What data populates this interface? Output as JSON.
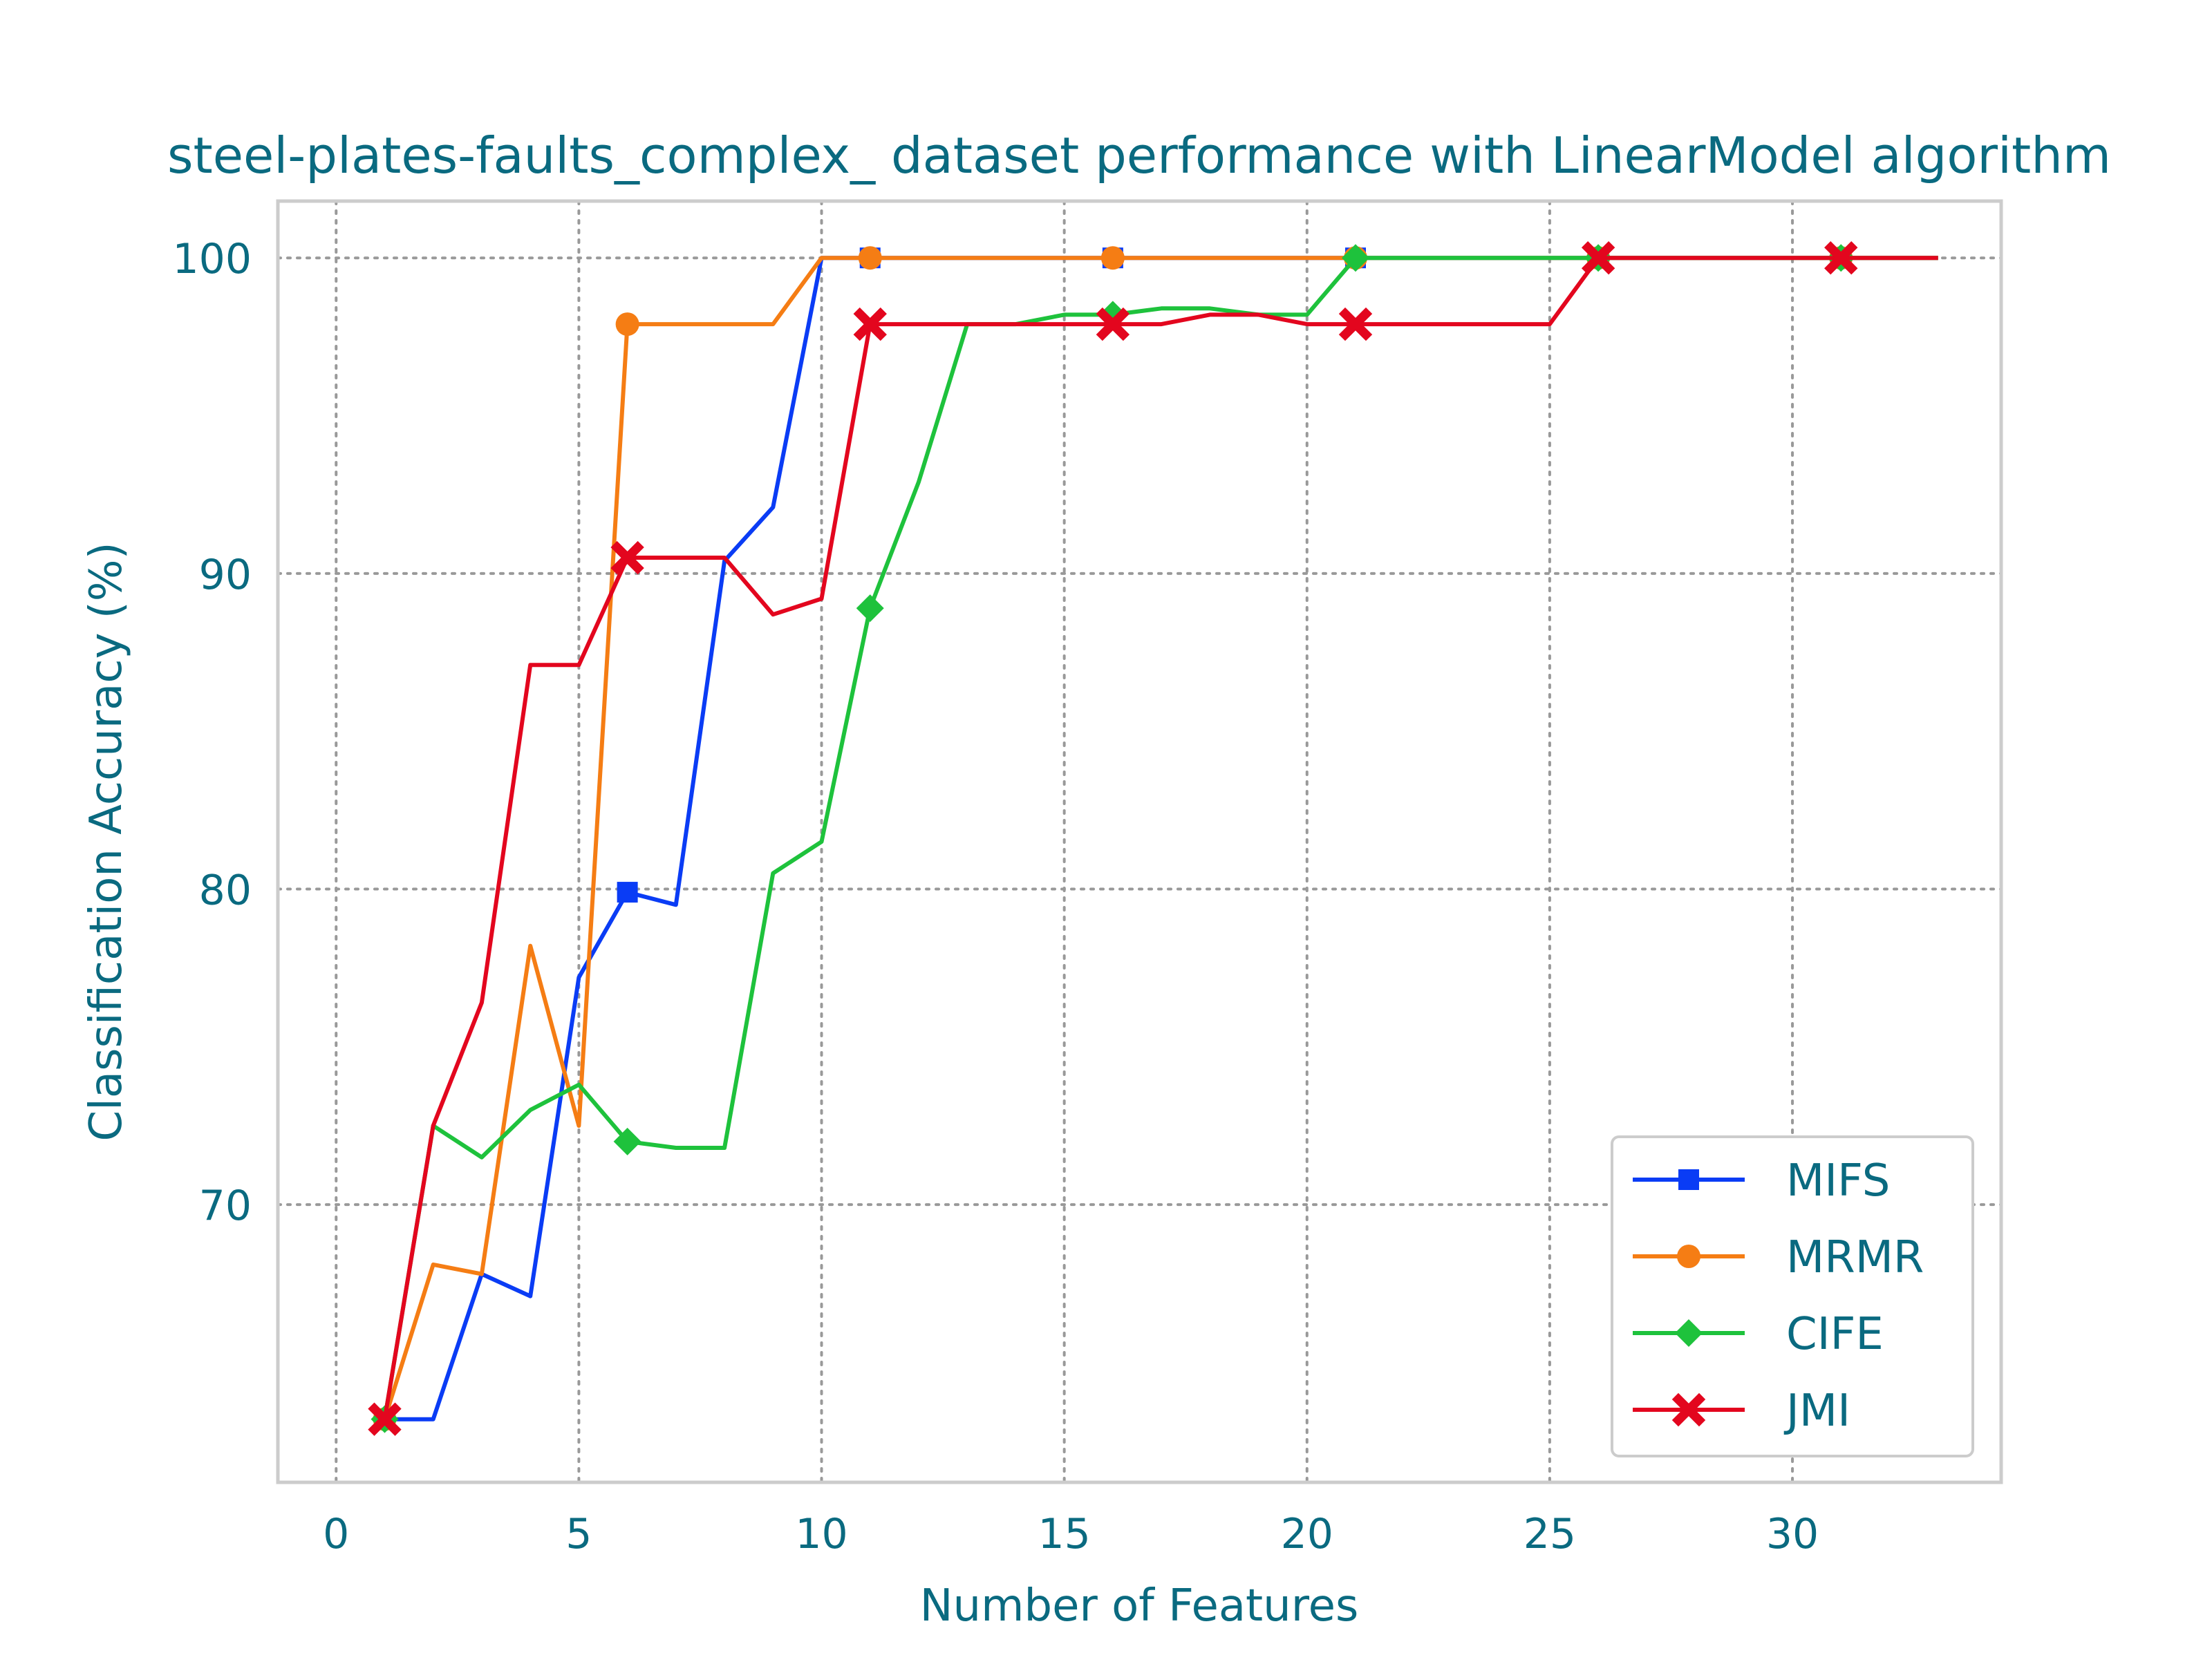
{
  "chart_data": {
    "type": "line",
    "title": "steel-plates-faults_complex_ dataset performance with LinearModel algorithm",
    "xlabel": "Number of Features",
    "ylabel": "Classification Accuracy (%)",
    "xlim": [
      -1.2,
      34.3
    ],
    "ylim": [
      61.2,
      101.8
    ],
    "xticks": [
      0,
      5,
      10,
      15,
      20,
      25,
      30
    ],
    "yticks": [
      70,
      80,
      90,
      100
    ],
    "grid": true,
    "legend_position": "lower-right",
    "x": [
      1,
      2,
      3,
      4,
      5,
      6,
      7,
      8,
      9,
      10,
      11,
      12,
      13,
      14,
      15,
      16,
      17,
      18,
      19,
      20,
      21,
      22,
      23,
      24,
      25,
      26,
      27,
      28,
      29,
      30,
      31,
      32,
      33
    ],
    "series": [
      {
        "name": "MIFS",
        "color": "#0a3cf5",
        "marker": "square",
        "values": [
          63.2,
          63.2,
          67.8,
          67.1,
          77.2,
          79.9,
          79.5,
          90.4,
          92.1,
          100,
          100,
          100,
          100,
          100,
          100,
          100,
          100,
          100,
          100,
          100,
          100,
          100,
          100,
          100,
          100,
          100,
          100,
          100,
          100,
          100,
          100,
          100,
          100
        ]
      },
      {
        "name": "MRMR",
        "color": "#f57d14",
        "marker": "circle",
        "values": [
          63.2,
          68.1,
          67.8,
          78.2,
          72.5,
          97.9,
          97.9,
          97.9,
          97.9,
          100,
          100,
          100,
          100,
          100,
          100,
          100,
          100,
          100,
          100,
          100,
          100,
          100,
          100,
          100,
          100,
          100,
          100,
          100,
          100,
          100,
          100,
          100,
          100
        ]
      },
      {
        "name": "CIFE",
        "color": "#1ec23c",
        "marker": "diamond",
        "values": [
          63.2,
          72.5,
          71.5,
          73.0,
          73.8,
          72.0,
          71.8,
          71.8,
          80.5,
          81.5,
          88.9,
          92.9,
          97.9,
          97.9,
          98.2,
          98.2,
          98.4,
          98.4,
          98.2,
          98.2,
          100,
          100,
          100,
          100,
          100,
          100,
          100,
          100,
          100,
          100,
          100,
          100,
          100
        ]
      },
      {
        "name": "JMI",
        "color": "#e3061e",
        "marker": "x",
        "values": [
          63.2,
          72.5,
          76.4,
          87.1,
          87.1,
          90.5,
          90.5,
          90.5,
          88.7,
          89.2,
          97.9,
          97.9,
          97.9,
          97.9,
          97.9,
          97.9,
          97.9,
          98.2,
          98.2,
          97.9,
          97.9,
          97.9,
          97.9,
          97.9,
          97.9,
          100,
          100,
          100,
          100,
          100,
          100,
          100,
          100
        ]
      }
    ]
  }
}
